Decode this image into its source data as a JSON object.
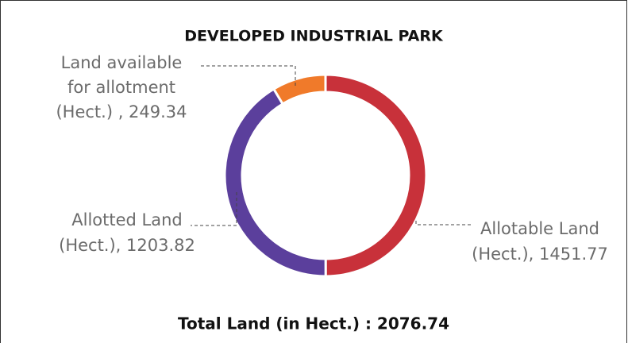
{
  "chart_data": {
    "type": "donut",
    "title": "DEVELOPED INDUSTRIAL PARK",
    "labels": [
      [
        "Allotable Land",
        "(Hect.), 1451.77"
      ],
      [
        "Allotted Land",
        "(Hect.), 1203.82"
      ],
      [
        "Land available",
        "for allotment",
        "(Hect.) , 249.34"
      ]
    ],
    "values": [
      1451.77,
      1203.82,
      249.34
    ],
    "colors": [
      "#c8313a",
      "#5b3f9c",
      "#f07a2a"
    ],
    "footer": "Total Land (in Hect.) : 2076.74"
  }
}
